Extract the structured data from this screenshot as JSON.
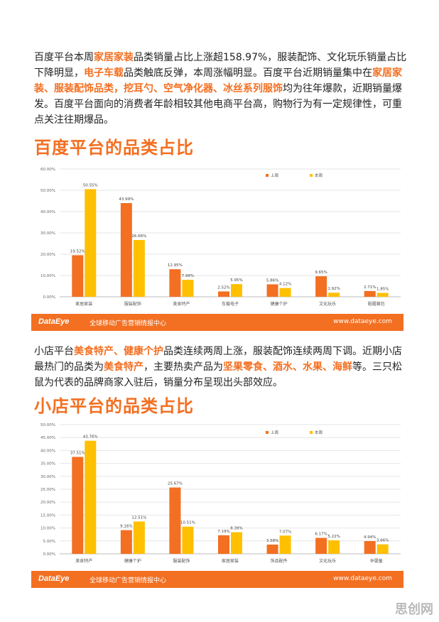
{
  "paragraph1": {
    "parts": [
      {
        "t": "百度平台本周"
      },
      {
        "t": "家居家装",
        "hl": true
      },
      {
        "t": "品类销量占比上涨超158.97%，服装配饰、文化玩乐销量占比下降明显，"
      },
      {
        "t": "电子车载",
        "hl": true
      },
      {
        "t": "品类触底反弹，本周涨幅明显。百度平台近期销量集中在"
      },
      {
        "t": "家居家装、服装配饰品类，挖耳勺、空气净化器、冰丝系列服饰",
        "hl": true
      },
      {
        "t": "均为往年爆款，近期销量爆发。百度平台面向的消费者年龄相较其他电商平台高，购物行为有一定规律性，可重点关注往期爆品。"
      }
    ]
  },
  "paragraph2": {
    "parts": [
      {
        "t": "小店平台"
      },
      {
        "t": "美食特产、健康个护",
        "hl": true
      },
      {
        "t": "品类连续两周上涨，服装配饰连续两周下调。近期小店最热门的品类为"
      },
      {
        "t": "美食特产",
        "hl": true
      },
      {
        "t": "，主要热卖产品为"
      },
      {
        "t": "坚果零食、酒水、水果、海鲜",
        "hl": true
      },
      {
        "t": "等。三只松鼠为代表的品牌商家入驻后，销量分布呈现出头部效应。"
      }
    ]
  },
  "section1_title": "百度平台的品类占比",
  "section2_title": "小店平台的品类占比",
  "banner": {
    "logo": "DataEye",
    "slogan": "全球移动广告营销情报中心",
    "url": "www.dataeye.com"
  },
  "watermark": "思创网",
  "colors": {
    "last_week": "#f36f21",
    "this_week": "#ffc000",
    "accent": "#f36f21"
  },
  "chart_data": [
    {
      "type": "bar",
      "title": "百度平台的品类占比",
      "categories": [
        "家居家装",
        "服装配饰",
        "美食特产",
        "车载电子",
        "健康个护",
        "文化玩乐",
        "鞋履箱包"
      ],
      "series": [
        {
          "name": "上周",
          "values": [
            19.52,
            43.99,
            12.95,
            2.52,
            5.86,
            9.65,
            2.71
          ],
          "labels": [
            "19.52%",
            "43.99%",
            "12.95%",
            "2.52%",
            "5.86%",
            "9.65%",
            "2.71%"
          ]
        },
        {
          "name": "本周",
          "values": [
            50.55,
            26.66,
            7.98,
            5.95,
            4.12,
            1.92,
            1.85
          ],
          "labels": [
            "50.55%",
            "26.66%",
            "7.98%",
            "5.95%",
            "4.12%",
            "1.92%",
            "1.85%"
          ]
        }
      ],
      "yticks": [
        "0.00%",
        "10.00%",
        "20.00%",
        "30.00%",
        "40.00%",
        "50.00%",
        "60.00%"
      ],
      "ylim": [
        0,
        60
      ],
      "legend_position": "top-right",
      "grid": true
    },
    {
      "type": "bar",
      "title": "小店平台的品类占比",
      "categories": [
        "美食特产",
        "健康个护",
        "服装配饰",
        "家居家装",
        "饰品配件",
        "文化玩乐",
        "孕婴童"
      ],
      "series": [
        {
          "name": "上周",
          "values": [
            37.51,
            9.16,
            25.67,
            7.19,
            3.58,
            6.17,
            4.94
          ],
          "labels": [
            "37.51%",
            "9.16%",
            "25.67%",
            "7.19%",
            "3.58%",
            "6.17%",
            "4.94%"
          ]
        },
        {
          "name": "本周",
          "values": [
            43.76,
            12.51,
            10.51,
            8.39,
            7.07,
            5.22,
            3.66
          ],
          "labels": [
            "43.76%",
            "12.51%",
            "10.51%",
            "8.39%",
            "7.07%",
            "5.22%",
            "3.66%"
          ]
        }
      ],
      "yticks": [
        "0.00%",
        "5.00%",
        "10.00%",
        "15.00%",
        "20.00%",
        "25.00%",
        "30.00%",
        "35.00%",
        "40.00%",
        "45.00%",
        "50.00%"
      ],
      "ylim": [
        0,
        50
      ],
      "legend_position": "top-right",
      "grid": true
    }
  ]
}
